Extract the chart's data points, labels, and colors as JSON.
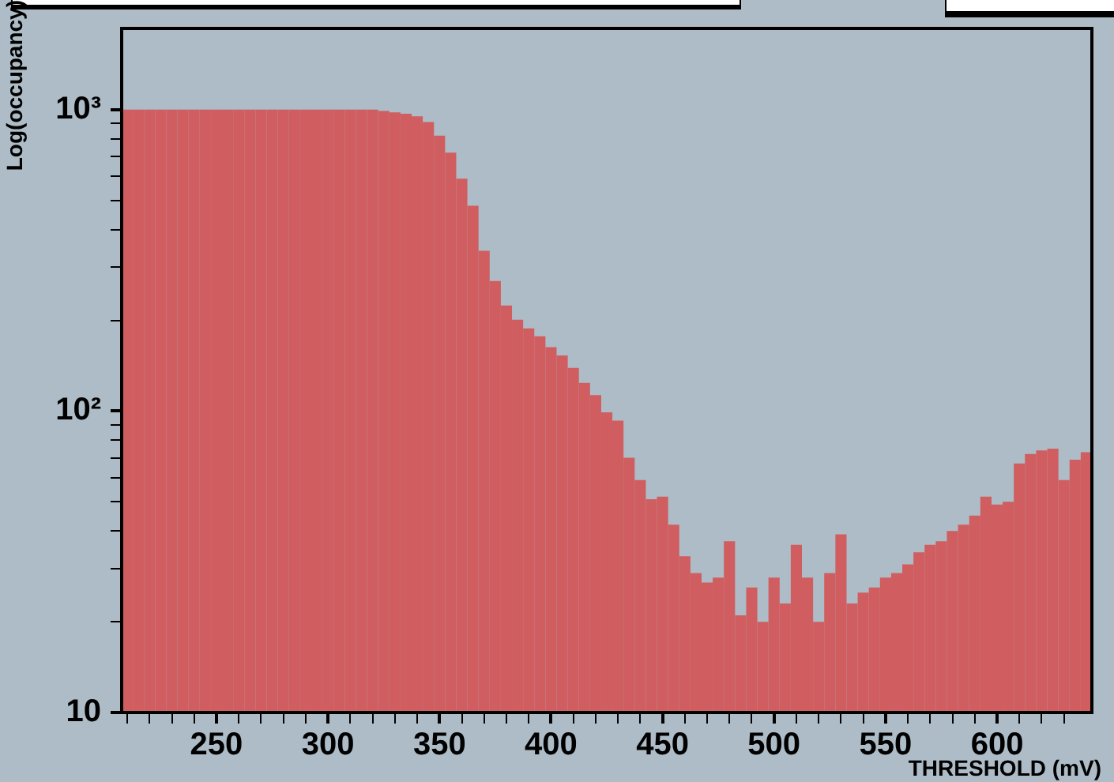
{
  "chart_data": {
    "type": "histogram",
    "xlabel": "THRESHOLD (mV)",
    "ylabel": "Log(occupancy)",
    "color": "#d05d5f",
    "log": true,
    "bins": [
      207.5,
      212.5,
      217.5,
      222.5,
      227.5,
      232.5,
      237.5,
      242.5,
      247.5,
      252.5,
      257.5,
      262.5,
      267.5,
      272.5,
      277.5,
      282.5,
      287.5,
      292.5,
      297.5,
      302.5,
      307.5,
      312.5,
      317.5,
      322.5,
      327.5,
      332.5,
      337.5,
      342.5,
      347.5,
      352.5,
      357.5,
      362.5,
      367.5,
      372.5,
      377.5,
      382.5,
      387.5,
      392.5,
      397.5,
      402.5,
      407.5,
      412.5,
      417.5,
      422.5,
      427.5,
      432.5,
      437.5,
      442.5,
      447.5,
      452.5,
      457.5,
      462.5,
      467.5,
      472.5,
      477.5,
      482.5,
      487.5,
      492.5,
      497.5,
      502.5,
      507.5,
      512.5,
      517.5,
      522.5,
      527.5,
      532.5,
      537.5,
      542.5,
      547.5,
      552.5,
      557.5,
      562.5,
      567.5,
      572.5,
      577.5,
      582.5,
      587.5,
      592.5,
      597.5,
      602.5,
      607.5,
      612.5,
      617.5,
      622.5,
      627.5,
      632.5,
      637.5,
      642.5
    ],
    "values": [
      1000,
      1000,
      1000,
      1000,
      1000,
      1000,
      1000,
      1000,
      1000,
      1000,
      1000,
      1000,
      1000,
      1000,
      1000,
      1000,
      1000,
      1000,
      1000,
      1000,
      1000,
      1000,
      1000,
      990,
      980,
      970,
      950,
      910,
      820,
      720,
      590,
      480,
      340,
      270,
      224,
      201,
      188,
      177,
      163,
      153,
      139,
      124,
      113,
      99,
      93,
      70,
      59,
      51,
      52,
      42,
      33,
      29,
      27,
      28,
      37,
      21,
      26,
      20,
      28,
      23,
      36,
      28,
      20,
      29,
      39,
      23,
      25,
      26,
      28,
      29,
      31,
      34,
      36,
      37,
      40,
      42,
      45,
      52,
      49,
      50,
      67,
      72,
      74,
      75,
      59,
      69,
      73
    ],
    "xlim": [
      207.5,
      642.5
    ],
    "xticks": [
      {
        "value": 210,
        "label": null
      },
      {
        "value": 220,
        "label": null
      },
      {
        "value": 230,
        "label": null
      },
      {
        "value": 240,
        "label": null
      },
      250,
      {
        "value": 260,
        "label": null
      },
      {
        "value": 270,
        "label": null
      },
      {
        "value": 280,
        "label": null
      },
      {
        "value": 290,
        "label": null
      },
      300,
      {
        "value": 310,
        "label": null
      },
      {
        "value": 320,
        "label": null
      },
      {
        "value": 330,
        "label": null
      },
      {
        "value": 340,
        "label": null
      },
      350,
      {
        "value": 360,
        "label": null
      },
      {
        "value": 370,
        "label": null
      },
      {
        "value": 380,
        "label": null
      },
      {
        "value": 390,
        "label": null
      },
      400,
      {
        "value": 410,
        "label": null
      },
      {
        "value": 420,
        "label": null
      },
      {
        "value": 430,
        "label": null
      },
      {
        "value": 440,
        "label": null
      },
      450,
      {
        "value": 460,
        "label": null
      },
      {
        "value": 470,
        "label": null
      },
      {
        "value": 480,
        "label": null
      },
      {
        "value": 490,
        "label": null
      },
      500,
      {
        "value": 510,
        "label": null
      },
      {
        "value": 520,
        "label": null
      },
      {
        "value": 530,
        "label": null
      },
      {
        "value": 540,
        "label": null
      },
      550,
      {
        "value": 560,
        "label": null
      },
      {
        "value": 570,
        "label": null
      },
      {
        "value": 580,
        "label": null
      },
      {
        "value": 590,
        "label": null
      },
      600,
      {
        "value": 610,
        "label": null
      },
      {
        "value": 620,
        "label": null
      },
      {
        "value": 630,
        "label": null
      }
    ],
    "ylim": [
      10,
      1860
    ],
    "yticks": [
      10,
      {
        "value": 20,
        "label": null
      },
      {
        "value": 30,
        "label": null
      },
      {
        "value": 40,
        "label": null
      },
      {
        "value": 50,
        "label": null
      },
      {
        "value": 60,
        "label": null
      },
      {
        "value": 70,
        "label": null
      },
      {
        "value": 80,
        "label": null
      },
      {
        "value": 90,
        "label": null
      },
      {
        "value": 100,
        "label": "10²"
      },
      {
        "value": 200,
        "label": null
      },
      {
        "value": 300,
        "label": null
      },
      {
        "value": 400,
        "label": null
      },
      {
        "value": 500,
        "label": null
      },
      {
        "value": 600,
        "label": null
      },
      {
        "value": 700,
        "label": null
      },
      {
        "value": 800,
        "label": null
      },
      {
        "value": 900,
        "label": null
      },
      {
        "value": 1000,
        "label": "10³"
      }
    ]
  }
}
